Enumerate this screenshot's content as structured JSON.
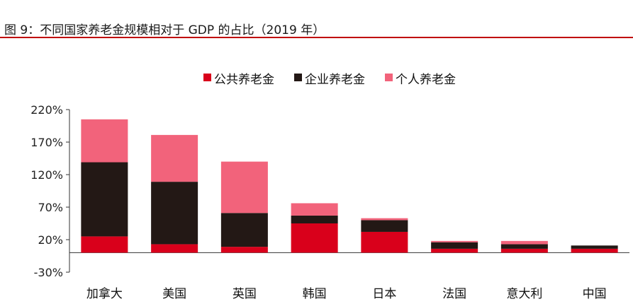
{
  "figure": {
    "title": "图 9：不同国家养老金规模相对于 GDP 的占比（2019 年）"
  },
  "chart_data": {
    "type": "bar",
    "stacked": true,
    "title": "图 9：不同国家养老金规模相对于 GDP 的占比（2019 年）",
    "xlabel": "",
    "ylabel": "",
    "categories": [
      "加拿大",
      "美国",
      "英国",
      "韩国",
      "日本",
      "法国",
      "意大利",
      "中国"
    ],
    "ylim": [
      -30,
      220
    ],
    "yticks": [
      -30,
      20,
      70,
      120,
      170,
      220
    ],
    "ytick_labels": [
      "-30%",
      "20%",
      "70%",
      "120%",
      "170%",
      "220%"
    ],
    "series": [
      {
        "name": "公共养老金",
        "color": "#d9001b",
        "values": [
          25,
          13,
          9,
          45,
          32,
          6,
          6,
          6
        ]
      },
      {
        "name": "企业养老金",
        "color": "#231815",
        "values": [
          114,
          96,
          52,
          12,
          18,
          10,
          7,
          5
        ]
      },
      {
        "name": "个人养老金",
        "color": "#f2637b",
        "values": [
          66,
          72,
          79,
          19,
          3,
          2,
          5,
          0
        ]
      }
    ],
    "legend_position": "top-center",
    "grid": false
  }
}
